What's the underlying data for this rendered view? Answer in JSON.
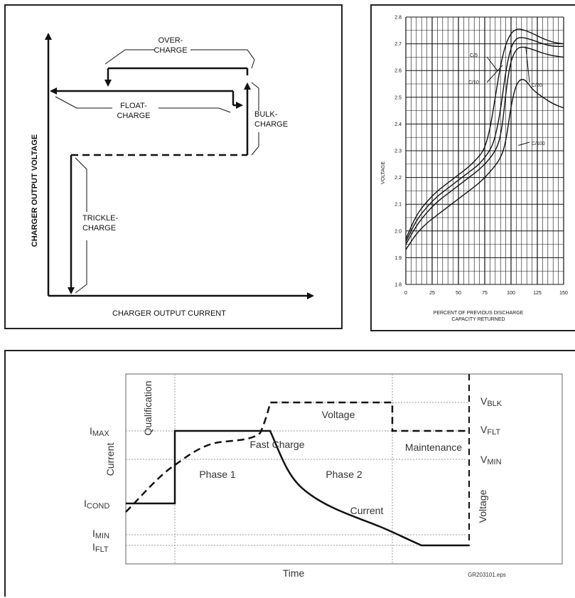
{
  "chart_data": [
    {
      "type": "diagram",
      "xlabel": "CHARGER OUTPUT CURRENT",
      "ylabel": "CHARGER OUTPUT VOLTAGE",
      "stages": [
        {
          "line1": "OVER-",
          "line2": "CHARGE"
        },
        {
          "line1": "FLOAT-",
          "line2": "CHARGE"
        },
        {
          "line1": "BULK-",
          "line2": "CHARGE"
        },
        {
          "line1": "TRICKLE-",
          "line2": "CHARGE"
        }
      ]
    },
    {
      "type": "line",
      "xlabel_line1": "PERCENT OF PREVIOUS DISCHARGE",
      "xlabel_line2": "CAPACITY RETURNED",
      "ylabel": "VOLTAGE",
      "xlim": [
        0,
        150
      ],
      "ylim": [
        1.8,
        2.8
      ],
      "x_ticks": [
        0,
        25,
        50,
        75,
        100,
        125,
        150
      ],
      "y_ticks": [
        1.8,
        1.9,
        2.0,
        2.1,
        2.2,
        2.3,
        2.4,
        2.5,
        2.6,
        2.7,
        2.8
      ],
      "series": [
        {
          "name": "C/5",
          "x": [
            0,
            10,
            20,
            30,
            40,
            50,
            60,
            70,
            75,
            80,
            85,
            90,
            95,
            100,
            105,
            110,
            120,
            130,
            140,
            150
          ],
          "y": [
            1.97,
            2.06,
            2.11,
            2.15,
            2.18,
            2.21,
            2.24,
            2.28,
            2.31,
            2.38,
            2.5,
            2.62,
            2.7,
            2.74,
            2.755,
            2.755,
            2.74,
            2.72,
            2.705,
            2.7
          ]
        },
        {
          "name": "C/10",
          "x": [
            0,
            10,
            20,
            30,
            40,
            50,
            60,
            70,
            80,
            85,
            90,
            95,
            100,
            105,
            110,
            120,
            130,
            140,
            150
          ],
          "y": [
            1.96,
            2.04,
            2.09,
            2.13,
            2.16,
            2.19,
            2.22,
            2.25,
            2.3,
            2.35,
            2.45,
            2.6,
            2.69,
            2.72,
            2.725,
            2.715,
            2.7,
            2.69,
            2.69
          ]
        },
        {
          "name": "C/20",
          "x": [
            0,
            10,
            20,
            30,
            40,
            50,
            60,
            70,
            80,
            88,
            92,
            96,
            100,
            105,
            110,
            120,
            130,
            140,
            150
          ],
          "y": [
            1.95,
            2.02,
            2.07,
            2.11,
            2.14,
            2.17,
            2.2,
            2.23,
            2.27,
            2.32,
            2.4,
            2.55,
            2.64,
            2.68,
            2.69,
            2.68,
            2.665,
            2.655,
            2.65
          ]
        },
        {
          "name": "C/100",
          "x": [
            0,
            10,
            20,
            30,
            40,
            50,
            60,
            70,
            80,
            90,
            95,
            100,
            105,
            110,
            115,
            120,
            130,
            140,
            150
          ],
          "y": [
            1.93,
            1.99,
            2.03,
            2.06,
            2.09,
            2.12,
            2.15,
            2.18,
            2.22,
            2.27,
            2.33,
            2.47,
            2.55,
            2.57,
            2.56,
            2.53,
            2.5,
            2.475,
            2.46
          ]
        }
      ]
    },
    {
      "type": "line",
      "xlabel": "Time",
      "ylabel_left": "Current",
      "ylabel_right": "Voltage",
      "left_ticks": [
        {
          "label": "I",
          "sub": "MAX"
        },
        {
          "label": "I",
          "sub": "COND"
        },
        {
          "label": "I",
          "sub": "MIN"
        },
        {
          "label": "I",
          "sub": "FLT"
        }
      ],
      "right_ticks": [
        {
          "label": "V",
          "sub": "BLK"
        },
        {
          "label": "V",
          "sub": "FLT"
        },
        {
          "label": "V",
          "sub": "MIN"
        }
      ],
      "regions": [
        "Qualification",
        "Phase 1",
        "Phase 2",
        "Maintenance"
      ],
      "annotations": [
        "Voltage",
        "Fast Charge",
        "Current"
      ],
      "footnote": "GR203101.eps"
    }
  ]
}
